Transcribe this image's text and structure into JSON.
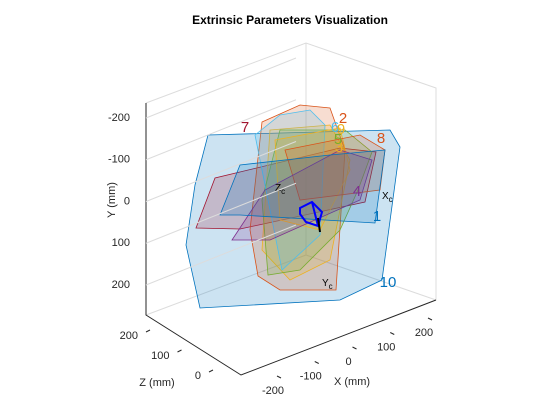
{
  "chart_data": {
    "type": "extrinsics3d",
    "title": "Extrinsic Parameters Visualization",
    "xlabel": "X (mm)",
    "ylabel": "Y (mm)",
    "zlabel": "Z (mm)",
    "xticks": [
      -200,
      -100,
      0,
      100,
      200
    ],
    "yticks": [
      -200,
      -100,
      0,
      100,
      200
    ],
    "zticks": [
      0,
      100,
      200
    ],
    "grid": true,
    "boards": [
      {
        "label": "1",
        "color": "#0072bd"
      },
      {
        "label": "2",
        "color": "#d95319"
      },
      {
        "label": "3",
        "color": "#edb120"
      },
      {
        "label": "4",
        "color": "#7e2f8e"
      },
      {
        "label": "5",
        "color": "#77ac30"
      },
      {
        "label": "6",
        "color": "#4dbeee"
      },
      {
        "label": "7",
        "color": "#a2142f"
      },
      {
        "label": "8",
        "color": "#d95319"
      },
      {
        "label": "9",
        "color": "#edb120"
      },
      {
        "label": "10",
        "color": "#0072bd"
      }
    ],
    "camera_axes": [
      {
        "letter": "Z",
        "sub": "c"
      },
      {
        "letter": "X",
        "sub": "c"
      },
      {
        "letter": "Y",
        "sub": "c"
      }
    ]
  }
}
